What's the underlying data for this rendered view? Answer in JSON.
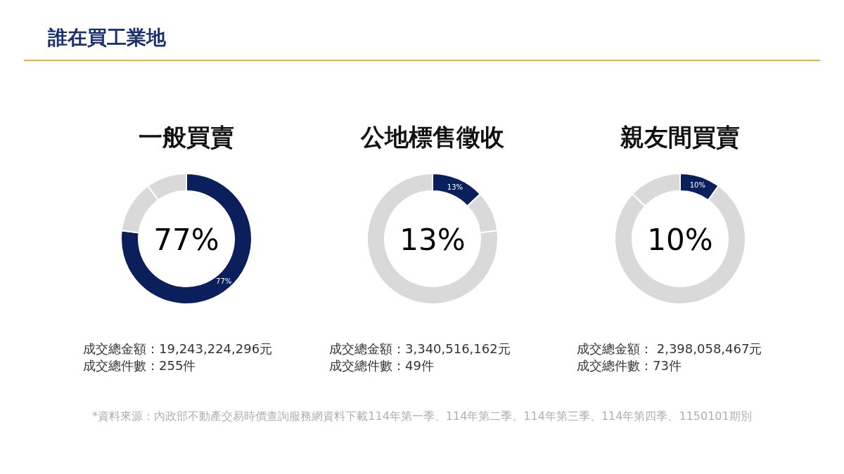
{
  "chart_data": [
    {
      "type": "donut",
      "title": "一般買賣",
      "categories": [
        null,
        null,
        null
      ],
      "values": [
        77,
        13,
        10
      ],
      "colors": [
        "#0a1f5c",
        "#d9d9d9",
        "#d9d9d9"
      ],
      "value_labels": [
        "77%",
        null,
        null
      ],
      "annotations": [
        "77%",
        "成交總金額：19,243,224,296元",
        "成交總件數：255件"
      ]
    },
    {
      "type": "donut",
      "title": "公地標售徵收",
      "categories": [
        null,
        null,
        null
      ],
      "values": [
        13,
        10,
        77
      ],
      "colors": [
        "#0a1f5c",
        "#d9d9d9",
        "#d9d9d9"
      ],
      "value_labels": [
        "13%",
        null,
        null
      ],
      "annotations": [
        "13%",
        "成交總金額：3,340,516,162元",
        "成交總件數：49件"
      ]
    },
    {
      "type": "donut",
      "title": "親友間買賣",
      "categories": [
        null,
        null,
        null
      ],
      "values": [
        10,
        77,
        13
      ],
      "colors": [
        "#0a1f5c",
        "#d9d9d9",
        "#d9d9d9"
      ],
      "value_labels": [
        "10%",
        null,
        null
      ],
      "annotations": [
        "10%",
        "成交總金額： 2,398,058,467元",
        "成交總件數：73件"
      ]
    },
    {
      "type": "other",
      "title": "誰在買工業地",
      "annotations": [
        "*資料來源：內政部不動產交易時價查詢服務網資料下載114年第一季、114年第二季、114年第三季、114年第四季、1150101期別"
      ]
    }
  ]
}
